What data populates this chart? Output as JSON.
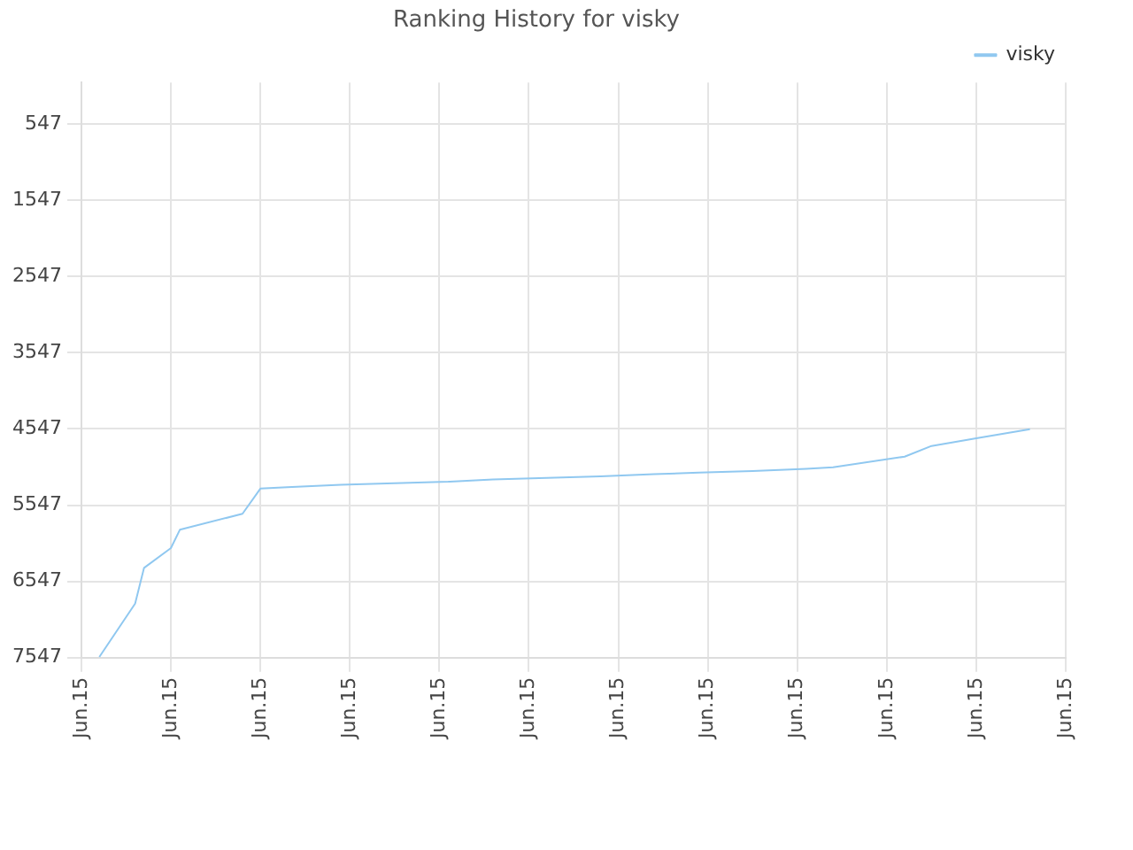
{
  "chart_data": {
    "type": "line",
    "title": "Ranking History for visky",
    "categories": [
      "Jun.15",
      null,
      null,
      null,
      null,
      null,
      null,
      null,
      null,
      null,
      "Jun.15",
      null,
      null,
      null,
      null,
      null,
      null,
      null,
      null,
      null,
      "Jun.15",
      null,
      null,
      null,
      null,
      null,
      null,
      null,
      null,
      null,
      "Jun.15",
      null,
      null,
      null,
      null,
      null,
      null,
      null,
      null,
      null,
      "Jun.15",
      null,
      null,
      null,
      null,
      null,
      null,
      null,
      null,
      null,
      "Jun.15",
      null,
      null,
      null,
      null,
      null,
      null,
      null,
      null,
      null,
      "Jun.15",
      null,
      null,
      null,
      null,
      null,
      null,
      null,
      null,
      null,
      "Jun.15",
      null,
      null,
      null,
      null,
      null,
      null,
      null,
      null,
      null,
      "Jun.15",
      null,
      null,
      null,
      null,
      null,
      null,
      null,
      null,
      null,
      "Jun.15",
      null,
      null,
      null,
      null,
      null,
      null,
      null,
      null,
      null,
      "Jun.15",
      null,
      null,
      null,
      null,
      null,
      null,
      null,
      null,
      null,
      "Jun.15"
    ],
    "series": [
      {
        "name": "visky",
        "color": "#90c8f0",
        "values": [
          null,
          null,
          7540,
          null,
          null,
          null,
          6840,
          6370,
          null,
          null,
          6110,
          5870,
          null,
          null,
          null,
          null,
          null,
          null,
          5660,
          null,
          5330,
          null,
          null,
          5310,
          null,
          null,
          null,
          null,
          null,
          5280,
          null,
          null,
          null,
          null,
          null,
          5260,
          null,
          null,
          null,
          null,
          null,
          5240,
          null,
          null,
          null,
          null,
          5210,
          null,
          null,
          null,
          null,
          null,
          5190,
          null,
          null,
          null,
          null,
          null,
          5170,
          null,
          null,
          null,
          null,
          null,
          5140,
          null,
          null,
          null,
          null,
          5120,
          null,
          null,
          null,
          null,
          null,
          5100,
          null,
          null,
          null,
          null,
          null,
          5070,
          null,
          null,
          5050,
          null,
          null,
          null,
          null,
          null,
          null,
          null,
          4910,
          null,
          null,
          4770,
          null,
          null,
          null,
          null,
          4670,
          null,
          null,
          null,
          null,
          null,
          4550,
          null,
          null,
          null,
          null
        ]
      }
    ],
    "ylim": [
      7547,
      0
    ],
    "yticks": [
      547,
      1547,
      2547,
      3547,
      4547,
      5547,
      6547,
      7547
    ],
    "grid": true,
    "legend": "top right",
    "marker": "none",
    "line_style": "solid"
  }
}
